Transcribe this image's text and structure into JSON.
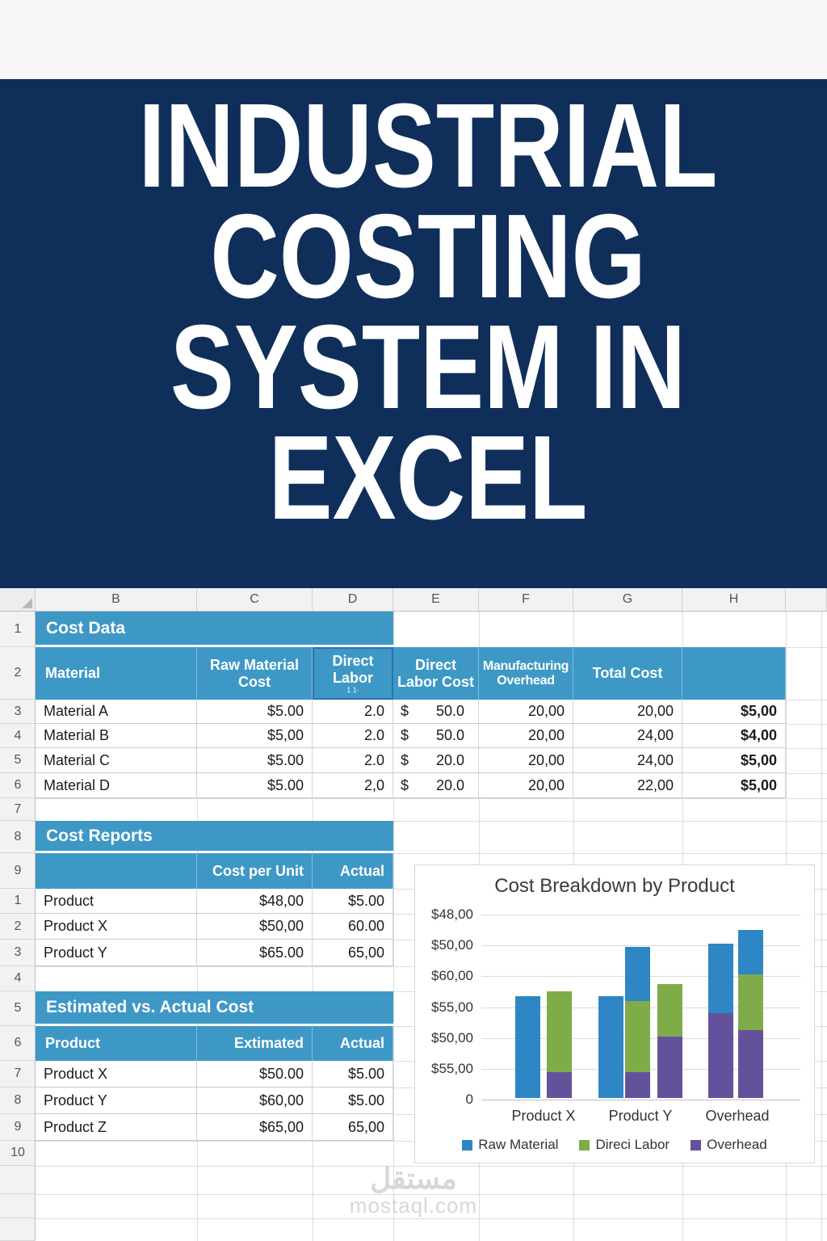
{
  "banner": {
    "lines": [
      "INDUSTRIAL",
      "COSTING",
      "SYSTEM IN",
      "EXCEL"
    ]
  },
  "colors": {
    "banner_bg": "#0F2F5A",
    "table_header_blue": "#3E98C6",
    "series_blue": "#2E86C4",
    "series_green": "#7EAC49",
    "series_purple": "#64519C"
  },
  "sheet": {
    "columns": [
      "B",
      "C",
      "D",
      "E",
      "F",
      "G",
      "H"
    ],
    "row_numbers": [
      "1",
      "2",
      "3",
      "4",
      "5",
      "6",
      "7",
      "8",
      "9",
      "1",
      "2",
      "3",
      "4",
      "5",
      "6",
      "7",
      "8",
      "9",
      "10"
    ],
    "cost_data": {
      "title": "Cost Data",
      "headers": {
        "b": "Material",
        "c": [
          "Raw Material",
          "Cost"
        ],
        "d": [
          "Direct",
          "Labor"
        ],
        "d_sub": "1 1·",
        "e": [
          "Direct",
          "Labor Cost"
        ],
        "f": [
          "Manufacturing",
          "Overhead"
        ],
        "g": [
          "Total Cost"
        ]
      },
      "rows": [
        {
          "material": "Material A",
          "raw": "$5.00",
          "labor": "2.0",
          "labor_cost_sym": "$",
          "labor_cost": "50.0",
          "overhead": "20,00",
          "total": "20,00",
          "total_h": "$5,00"
        },
        {
          "material": "Material B",
          "raw": "$5,00",
          "labor": "2.0",
          "labor_cost_sym": "$",
          "labor_cost": "50.0",
          "overhead": "20,00",
          "total": "24,00",
          "total_h": "$4,00"
        },
        {
          "material": "Material C",
          "raw": "$5.00",
          "labor": "2.0",
          "labor_cost_sym": "$",
          "labor_cost": "20.0",
          "overhead": "20,00",
          "total": "24,00",
          "total_h": "$5,00"
        },
        {
          "material": "Material D",
          "raw": "$5.00",
          "labor": "2,0",
          "labor_cost_sym": "$",
          "labor_cost": "20.0",
          "overhead": "20,00",
          "total": "22,00",
          "total_h": "$5,00"
        }
      ]
    },
    "cost_reports": {
      "title": "Cost Reports",
      "headers": {
        "b": "",
        "c": "Cost per Unit",
        "d": "Actual"
      },
      "rows": [
        {
          "name": "Product",
          "cost": "$48,00",
          "actual": "$5.00"
        },
        {
          "name": "Product X",
          "cost": "$50,00",
          "actual": "60.00"
        },
        {
          "name": "Product Y",
          "cost": "$65.00",
          "actual": "65,00"
        }
      ]
    },
    "est_vs_actual": {
      "title": "Estimated vs. Actual Cost",
      "headers": {
        "b": "Product",
        "c": "Extimated",
        "d": "Actual"
      },
      "rows": [
        {
          "name": "Product X",
          "est": "$50.00",
          "actual": "$5.00"
        },
        {
          "name": "Product Y",
          "est": "$60,00",
          "actual": "$5.00"
        },
        {
          "name": "Product Z",
          "est": "$65,00",
          "actual": "65,00"
        }
      ]
    }
  },
  "chart_data": {
    "type": "bar",
    "stacked": true,
    "title": "Cost Breakdown by Product",
    "categories": [
      "Product X",
      "Product Y",
      "Overhead"
    ],
    "y_tick_labels_top_to_bottom": [
      "$48,00",
      "$50,00",
      "$60,00",
      "$55,00",
      "$50,00",
      "$55,00",
      "0"
    ],
    "units_per_axis": 6,
    "gridlines": true,
    "legend_position": "bottom",
    "legend": [
      {
        "label": "Raw Material",
        "color": "#2E86C4"
      },
      {
        "label": "Direci Labor",
        "color": "#7EAC49"
      },
      {
        "label": "Overhead",
        "color": "#64519C"
      }
    ],
    "bars": [
      {
        "category": "Product X",
        "segments": [
          {
            "series": "Raw Material",
            "units": 3.3
          }
        ]
      },
      {
        "category": "Product X",
        "segments": [
          {
            "series": "Overhead",
            "units": 0.85
          },
          {
            "series": "Direci Labor",
            "units": 2.6
          }
        ]
      },
      {
        "category": "Product Y",
        "segments": [
          {
            "series": "Raw Material",
            "units": 3.3
          }
        ]
      },
      {
        "category": "Product Y",
        "segments": [
          {
            "series": "Overhead",
            "units": 0.85
          },
          {
            "series": "Direci Labor",
            "units": 2.3
          },
          {
            "series": "Raw Material",
            "units": 1.75
          }
        ]
      },
      {
        "category": "Product Y",
        "segments": [
          {
            "series": "Overhead",
            "units": 2.0
          },
          {
            "series": "Direci Labor",
            "units": 1.7
          }
        ]
      },
      {
        "category": "Overhead",
        "segments": [
          {
            "series": "Overhead",
            "units": 2.75
          },
          {
            "series": "Raw Material",
            "units": 2.25
          }
        ]
      },
      {
        "category": "Overhead",
        "segments": [
          {
            "series": "Overhead",
            "units": 2.2
          },
          {
            "series": "Direci Labor",
            "units": 1.8
          },
          {
            "series": "Raw Material",
            "units": 1.45
          }
        ]
      }
    ]
  },
  "watermark": {
    "arabic": "مستقل",
    "latin": "mostaql.com"
  }
}
